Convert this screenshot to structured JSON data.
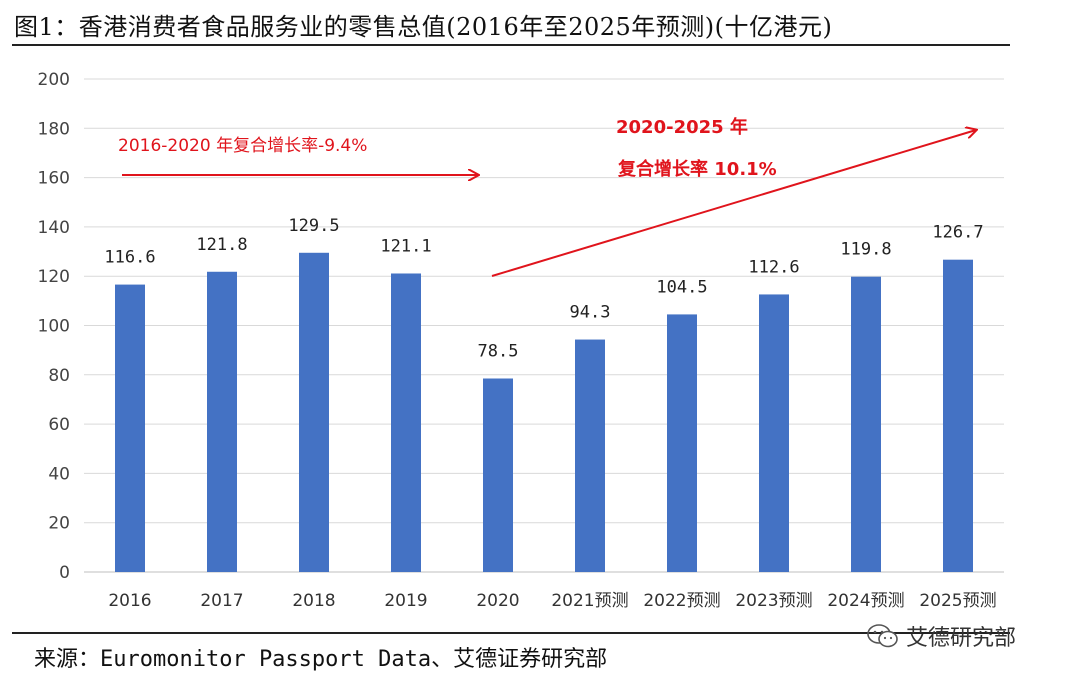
{
  "title": "图1：香港消费者食品服务业的零售总值(2016年至2025年预测)(十亿港元)",
  "source": "来源：Euromonitor Passport Data、艾德证券研究部",
  "watermark": "艾德研究部",
  "colors": {
    "bar": "#4472c4",
    "annotation": "#e0141c",
    "grid": "#d9d9d9"
  },
  "annotations": {
    "cagr_2016_2020": "2016-2020 年复合增长率-9.4%",
    "cagr_2020_2025_line1": "2020-2025 年",
    "cagr_2020_2025_line2": "复合增长率 10.1%"
  },
  "chart_data": {
    "type": "bar",
    "categories": [
      "2016",
      "2017",
      "2018",
      "2019",
      "2020",
      "2021预测",
      "2022预测",
      "2023预测",
      "2024预测",
      "2025预测"
    ],
    "values": [
      116.6,
      121.8,
      129.5,
      121.1,
      78.5,
      94.3,
      104.5,
      112.6,
      119.8,
      126.7
    ],
    "data_labels": [
      "116.6",
      "121.8",
      "129.5",
      "121.1",
      "78.5",
      "94.3",
      "104.5",
      "112.6",
      "119.8",
      "126.7"
    ],
    "ylim": [
      0,
      200
    ],
    "yticks": [
      0,
      20,
      40,
      60,
      80,
      100,
      120,
      140,
      160,
      180,
      200
    ],
    "grid": true,
    "legend": "none"
  }
}
